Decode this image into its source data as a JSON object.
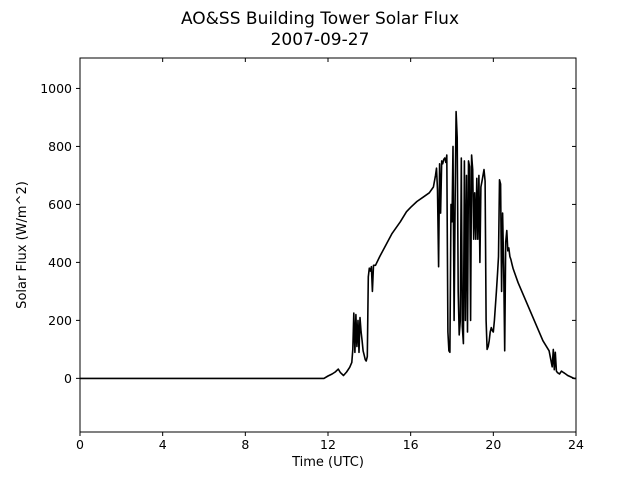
{
  "chart_data": {
    "type": "line",
    "title_line1": "AO&SS Building Tower Solar Flux",
    "title_line2": "2007-09-27",
    "xlabel": "Time (UTC)",
    "ylabel": "Solar Flux (W/m^2)",
    "xlim": [
      0,
      24
    ],
    "ylim": [
      -185,
      1105
    ],
    "xticks": [
      0,
      4,
      8,
      12,
      16,
      20,
      24
    ],
    "yticks": [
      0,
      200,
      400,
      600,
      800,
      1000
    ],
    "grid": false,
    "legend": "none",
    "line_color": "#000000",
    "series": [
      {
        "x": [
          0,
          11.8,
          12.0,
          12.2,
          12.35,
          12.5,
          12.6,
          12.75,
          12.9,
          13.05,
          13.15,
          13.2,
          13.25,
          13.3,
          13.35,
          13.4,
          13.45,
          13.5,
          13.55,
          13.6,
          13.65,
          13.7,
          13.75,
          13.8,
          13.85,
          13.9,
          13.95,
          14.0,
          14.05,
          14.1,
          14.15,
          14.2,
          14.3,
          14.5,
          14.8,
          15.1,
          15.5,
          15.8,
          16.0,
          16.3,
          16.6,
          16.9,
          17.1,
          17.2,
          17.25,
          17.3,
          17.35,
          17.4,
          17.45,
          17.5,
          17.55,
          17.6,
          17.65,
          17.7,
          17.75,
          17.8,
          17.85,
          17.9,
          17.95,
          18.0,
          18.05,
          18.1,
          18.15,
          18.2,
          18.25,
          18.3,
          18.35,
          18.4,
          18.45,
          18.5,
          18.55,
          18.6,
          18.65,
          18.7,
          18.75,
          18.8,
          18.85,
          18.9,
          18.95,
          19.0,
          19.05,
          19.1,
          19.15,
          19.2,
          19.25,
          19.3,
          19.35,
          19.4,
          19.45,
          19.5,
          19.55,
          19.6,
          19.65,
          19.7,
          19.75,
          19.8,
          19.85,
          19.9,
          19.95,
          20.0,
          20.05,
          20.1,
          20.15,
          20.2,
          20.25,
          20.3,
          20.35,
          20.4,
          20.45,
          20.5,
          20.55,
          20.6,
          20.65,
          20.7,
          20.75,
          20.8,
          20.85,
          20.9,
          20.95,
          21.0,
          21.2,
          21.5,
          21.8,
          22.1,
          22.4,
          22.7,
          22.85,
          22.9,
          22.95,
          23.0,
          23.05,
          23.1,
          23.2,
          23.3,
          23.4,
          23.5,
          23.6,
          23.75,
          23.9,
          24.0
        ],
        "y": [
          0,
          0,
          8,
          15,
          22,
          32,
          20,
          10,
          22,
          38,
          55,
          100,
          225,
          90,
          220,
          110,
          200,
          90,
          210,
          160,
          130,
          95,
          80,
          65,
          60,
          75,
          350,
          380,
          370,
          385,
          300,
          390,
          390,
          420,
          460,
          500,
          540,
          575,
          590,
          610,
          625,
          640,
          660,
          700,
          725,
          650,
          385,
          740,
          570,
          750,
          740,
          755,
          760,
          745,
          770,
          160,
          95,
          90,
          600,
          540,
          800,
          200,
          600,
          920,
          830,
          300,
          150,
          200,
          760,
          180,
          120,
          750,
          200,
          700,
          160,
          750,
          730,
          200,
          770,
          720,
          480,
          640,
          480,
          690,
          480,
          700,
          400,
          660,
          680,
          700,
          720,
          680,
          200,
          100,
          110,
          130,
          160,
          175,
          165,
          160,
          200,
          250,
          300,
          360,
          420,
          685,
          670,
          300,
          570,
          380,
          95,
          470,
          510,
          440,
          450,
          420,
          410,
          395,
          380,
          370,
          330,
          280,
          230,
          180,
          130,
          95,
          40,
          100,
          30,
          90,
          25,
          20,
          15,
          25,
          20,
          15,
          10,
          5,
          0,
          0
        ]
      }
    ]
  }
}
